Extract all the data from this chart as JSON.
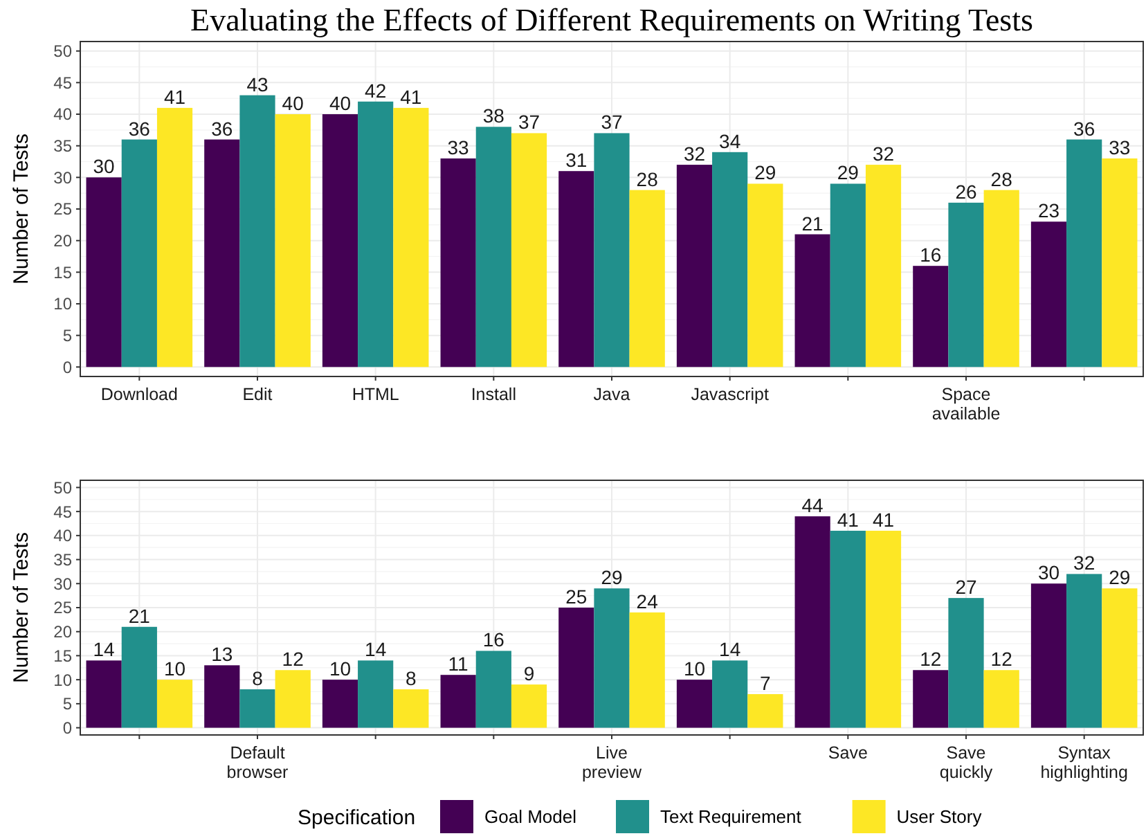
{
  "chart_data": [
    {
      "type": "bar",
      "title": "Evaluating the Effects of Different Requirements on Writing Tests",
      "ylabel": "Number of Tests",
      "categories": [
        "Download",
        "Edit",
        "HTML",
        "Install",
        "Java",
        "Javascript",
        null,
        "Space available",
        null
      ],
      "series": [
        {
          "color": "#440154",
          "values": [
            30,
            36,
            40,
            33,
            31,
            32,
            21,
            16,
            23
          ]
        },
        {
          "color": "#21908c",
          "values": [
            36,
            43,
            42,
            38,
            37,
            34,
            29,
            26,
            36
          ]
        },
        {
          "color": "#fde725",
          "values": [
            41,
            40,
            41,
            37,
            28,
            29,
            32,
            28,
            33
          ]
        }
      ],
      "ylim": [
        -1.5,
        51.5
      ],
      "yticks": [
        0,
        5,
        10,
        15,
        20,
        25,
        30,
        35,
        40,
        45,
        50
      ],
      "grid": true,
      "data_labels": true,
      "legend": false
    },
    {
      "type": "bar",
      "ylabel": "Number of Tests",
      "categories": [
        null,
        "Default browser",
        null,
        null,
        "Live preview",
        null,
        "Save",
        "Save quickly",
        "Syntax highlighting"
      ],
      "series": [
        {
          "name": "Goal Model",
          "color": "#440154",
          "values": [
            14,
            13,
            10,
            11,
            25,
            10,
            44,
            12,
            30
          ]
        },
        {
          "name": "Text Requirement",
          "color": "#21908c",
          "values": [
            21,
            8,
            14,
            16,
            29,
            14,
            41,
            27,
            32
          ]
        },
        {
          "name": "User Story",
          "color": "#fde725",
          "values": [
            10,
            12,
            8,
            9,
            24,
            7,
            41,
            12,
            29
          ]
        }
      ],
      "ylim": [
        -1.5,
        51.5
      ],
      "yticks": [
        0,
        5,
        10,
        15,
        20,
        25,
        30,
        35,
        40,
        45,
        50
      ],
      "grid": true,
      "data_labels": true,
      "legend": "bottom",
      "legend_title": "Specification"
    }
  ]
}
